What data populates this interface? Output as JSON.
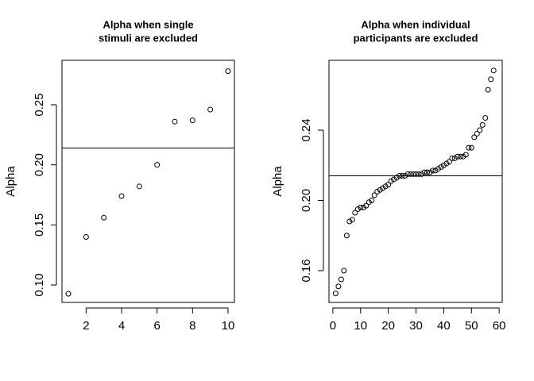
{
  "chart_data": [
    {
      "type": "scatter",
      "title": [
        "Alpha when single",
        "stimuli are excluded"
      ],
      "y_label": "Alpha",
      "x": [
        1,
        2,
        3,
        4,
        5,
        6,
        7,
        8,
        9,
        10
      ],
      "values": [
        0.0927,
        0.14,
        0.156,
        0.174,
        0.182,
        0.2,
        0.236,
        0.237,
        0.246,
        0.278
      ],
      "hline": 0.214,
      "xlim": [
        0.64,
        10.36
      ],
      "ylim": [
        0.0855,
        0.287
      ],
      "xticks": [
        2,
        4,
        6,
        8,
        10
      ],
      "yticks": [
        {
          "value": 0.1,
          "label": "0.10"
        },
        0.15,
        {
          "value": 0.2,
          "label": "0.20"
        },
        0.25
      ]
    },
    {
      "type": "scatter",
      "title": [
        "Alpha when individual",
        "participants are excluded"
      ],
      "y_label": "Alpha",
      "x": [
        1,
        2,
        3,
        4,
        5,
        6,
        7,
        8,
        9,
        10,
        11,
        12,
        13,
        14,
        15,
        16,
        17,
        18,
        19,
        20,
        21,
        22,
        23,
        24,
        25,
        26,
        27,
        28,
        29,
        30,
        31,
        32,
        33,
        34,
        35,
        36,
        37,
        38,
        39,
        40,
        41,
        42,
        43,
        44,
        45,
        46,
        47,
        48,
        49,
        50,
        51,
        52,
        53,
        54,
        55,
        56,
        57,
        58
      ],
      "values": [
        0.147,
        0.151,
        0.155,
        0.16,
        0.18,
        0.188,
        0.189,
        0.193,
        0.195,
        0.196,
        0.196,
        0.197,
        0.199,
        0.2,
        0.203,
        0.205,
        0.206,
        0.207,
        0.208,
        0.209,
        0.211,
        0.212,
        0.213,
        0.214,
        0.214,
        0.214,
        0.215,
        0.215,
        0.215,
        0.215,
        0.215,
        0.215,
        0.216,
        0.216,
        0.216,
        0.217,
        0.217,
        0.218,
        0.219,
        0.22,
        0.221,
        0.222,
        0.224,
        0.224,
        0.225,
        0.225,
        0.225,
        0.226,
        0.23,
        0.23,
        0.236,
        0.238,
        0.24,
        0.243,
        0.247,
        0.263,
        0.269,
        0.274
      ],
      "hline": 0.214,
      "xlim": [
        -1.4,
        61.1
      ],
      "ylim": [
        0.1419,
        0.2798
      ],
      "xticks": [
        0,
        10,
        20,
        30,
        40,
        50,
        60
      ],
      "yticks": [
        0.16,
        {
          "value": 0.2,
          "label": "0.20"
        },
        0.24
      ]
    }
  ]
}
